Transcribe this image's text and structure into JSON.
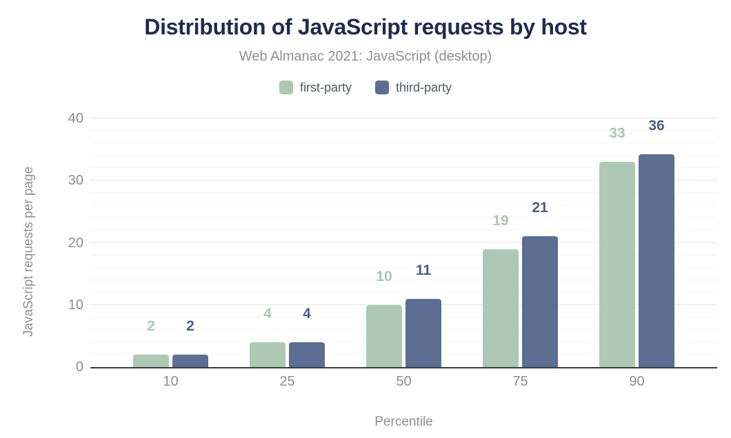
{
  "chart_data": {
    "type": "bar",
    "title": "Distribution of JavaScript requests by host",
    "subtitle": "Web Almanac 2021: JavaScript (desktop)",
    "xlabel": "Percentile",
    "ylabel": "JavaScript requests per page",
    "categories": [
      "10",
      "25",
      "50",
      "75",
      "90"
    ],
    "series": [
      {
        "name": "first-party",
        "color": "#adc9b4",
        "label_color": "#a9c7af",
        "values": [
          2,
          4,
          10,
          19,
          33
        ]
      },
      {
        "name": "third-party",
        "color": "#5c6e91",
        "label_color": "#4b5d87",
        "values": [
          2,
          4,
          11,
          21,
          36
        ]
      }
    ],
    "ylim": [
      0,
      40
    ],
    "yticks": [
      0,
      10,
      20,
      30,
      40
    ],
    "grid": {
      "minor_step": 2,
      "major_step": 10,
      "on": true
    },
    "legend_position": "top"
  },
  "style": {
    "title_color": "#1e2b4d",
    "subtitle_color": "#8f8f8f",
    "tick_color": "#8c8c8c",
    "legend_text_color": "#4e5761",
    "axis_line_color": "#3a3a40",
    "major_grid_color": "#e7e7e4",
    "minor_grid_color": "#f4f4f2",
    "background": "#ffffff"
  }
}
